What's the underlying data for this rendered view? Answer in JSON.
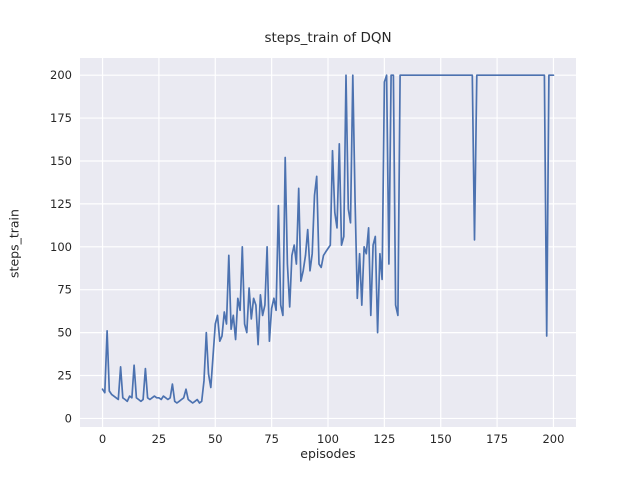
{
  "chart_data": {
    "type": "line",
    "title": "steps_train of DQN",
    "xlabel": "episodes",
    "ylabel": "steps_train",
    "x_ticks": [
      0,
      25,
      50,
      75,
      100,
      125,
      150,
      175,
      200
    ],
    "y_ticks": [
      0,
      25,
      50,
      75,
      100,
      125,
      150,
      175,
      200
    ],
    "xlim": [
      -10,
      210
    ],
    "ylim": [
      -5,
      210
    ],
    "grid": true,
    "legend": "none",
    "style": {
      "figure_bg": "#ffffff",
      "axes_bg": "#eaeaf2",
      "grid_color": "#ffffff",
      "line_color": "#4c72b0",
      "text_color": "#262626"
    },
    "series": [
      {
        "name": "steps_train",
        "x_encoding": "episode index, integers 0..200 step 1",
        "y": [
          17,
          15,
          51,
          16,
          14,
          13,
          12,
          11,
          30,
          12,
          11,
          10,
          13,
          12,
          31,
          12,
          11,
          10,
          11,
          29,
          12,
          11,
          12,
          13,
          12,
          12,
          11,
          13,
          12,
          11,
          12,
          20,
          10,
          9,
          10,
          11,
          12,
          17,
          11,
          10,
          9,
          10,
          11,
          9,
          10,
          22,
          50,
          26,
          18,
          36,
          55,
          60,
          45,
          48,
          62,
          55,
          95,
          52,
          60,
          46,
          70,
          63,
          100,
          55,
          50,
          76,
          58,
          70,
          66,
          43,
          72,
          60,
          66,
          100,
          45,
          64,
          70,
          63,
          124,
          66,
          60,
          152,
          90,
          65,
          95,
          101,
          90,
          134,
          80,
          86,
          95,
          110,
          86,
          96,
          130,
          141,
          90,
          88,
          95,
          97,
          99,
          101,
          156,
          120,
          111,
          160,
          101,
          106,
          200,
          122,
          114,
          200,
          126,
          70,
          96,
          66,
          100,
          96,
          111,
          60,
          101,
          106,
          50,
          96,
          81,
          196,
          200,
          90,
          200,
          200,
          66,
          60,
          200,
          200,
          200,
          200,
          200,
          200,
          200,
          200,
          200,
          200,
          200,
          200,
          200,
          200,
          200,
          200,
          200,
          200,
          200,
          200,
          200,
          200,
          200,
          200,
          200,
          200,
          200,
          200,
          200,
          200,
          200,
          200,
          200,
          104,
          200,
          200,
          200,
          200,
          200,
          200,
          200,
          200,
          200,
          200,
          200,
          200,
          200,
          200,
          200,
          200,
          200,
          200,
          200,
          200,
          200,
          200,
          200,
          200,
          200,
          200,
          200,
          200,
          200,
          200,
          200,
          48,
          200,
          200,
          200
        ]
      }
    ]
  }
}
